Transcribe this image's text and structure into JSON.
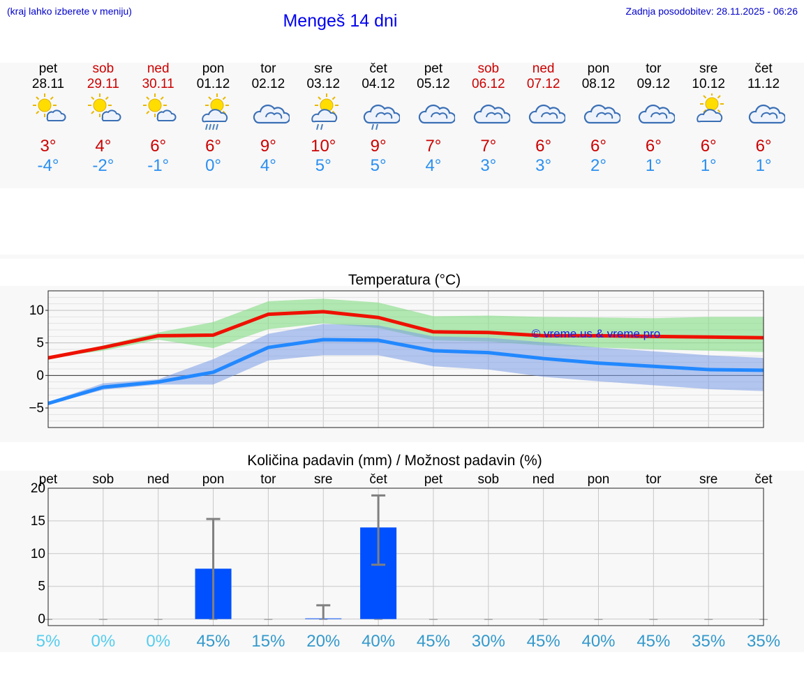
{
  "header": {
    "hint": "(kraj lahko izberete v meniju)",
    "title": "Mengeš 14 dni",
    "updated": "Zadnja posodobitev: 28.11.2025 - 06:26"
  },
  "colors": {
    "tmax": "#cc0000",
    "tmin": "#2a8ff0",
    "weekend": "#cc0000",
    "bar": "#0050ff",
    "prob_low": "#55ccee",
    "prob_high": "#3399cc"
  },
  "days": [
    {
      "name": "pet",
      "date": "28.11",
      "weekend": false,
      "icon": "sun-cloud-icon",
      "tmax": "3°",
      "tmin": "-4°"
    },
    {
      "name": "sob",
      "date": "29.11",
      "weekend": true,
      "icon": "sun-cloud-icon",
      "tmax": "4°",
      "tmin": "-2°"
    },
    {
      "name": "ned",
      "date": "30.11",
      "weekend": true,
      "icon": "sun-cloud-icon",
      "tmax": "6°",
      "tmin": "-1°"
    },
    {
      "name": "pon",
      "date": "01.12",
      "weekend": false,
      "icon": "sun-rain-icon",
      "tmax": "6°",
      "tmin": "0°"
    },
    {
      "name": "tor",
      "date": "02.12",
      "weekend": false,
      "icon": "cloud-icon",
      "tmax": "9°",
      "tmin": "4°"
    },
    {
      "name": "sre",
      "date": "03.12",
      "weekend": false,
      "icon": "sun-drizzle-icon",
      "tmax": "10°",
      "tmin": "5°"
    },
    {
      "name": "čet",
      "date": "04.12",
      "weekend": false,
      "icon": "cloud-drizzle-icon",
      "tmax": "9°",
      "tmin": "5°"
    },
    {
      "name": "pet",
      "date": "05.12",
      "weekend": false,
      "icon": "cloud-icon",
      "tmax": "7°",
      "tmin": "4°"
    },
    {
      "name": "sob",
      "date": "06.12",
      "weekend": true,
      "icon": "cloud-icon",
      "tmax": "7°",
      "tmin": "3°"
    },
    {
      "name": "ned",
      "date": "07.12",
      "weekend": true,
      "icon": "cloud-icon",
      "tmax": "6°",
      "tmin": "3°"
    },
    {
      "name": "pon",
      "date": "08.12",
      "weekend": false,
      "icon": "cloud-icon",
      "tmax": "6°",
      "tmin": "2°"
    },
    {
      "name": "tor",
      "date": "09.12",
      "weekend": false,
      "icon": "cloud-icon",
      "tmax": "6°",
      "tmin": "1°"
    },
    {
      "name": "sre",
      "date": "10.12",
      "weekend": false,
      "icon": "sun-cloud-big-icon",
      "tmax": "6°",
      "tmin": "1°"
    },
    {
      "name": "čet",
      "date": "11.12",
      "weekend": false,
      "icon": "cloud-icon",
      "tmax": "6°",
      "tmin": "1°"
    }
  ],
  "chart_data": [
    {
      "type": "line",
      "title": "Temperatura (°C)",
      "watermark": "© vreme.us & vreme.pro",
      "ylim": [
        -8,
        13
      ],
      "yticks": [
        10,
        5,
        0,
        -5
      ],
      "ytick_labels": [
        "10",
        "5",
        "0",
        "−5"
      ],
      "x": [
        0,
        1,
        2,
        3,
        4,
        5,
        6,
        7,
        8,
        9,
        10,
        11,
        12,
        13
      ],
      "series": [
        {
          "name": "max",
          "color": "#ee1100",
          "values": [
            2.7,
            4.3,
            6.1,
            6.2,
            9.4,
            9.8,
            8.9,
            6.7,
            6.6,
            6.1,
            6.1,
            6.0,
            5.9,
            5.8
          ],
          "band_low": [
            2.7,
            3.8,
            5.5,
            4.2,
            7.1,
            8.0,
            7.3,
            5.4,
            5.2,
            4.6,
            4.3,
            4.0,
            3.8,
            3.6
          ],
          "band_high": [
            2.9,
            4.6,
            6.6,
            8.2,
            11.4,
            11.8,
            11.2,
            9.1,
            9.2,
            9.0,
            8.9,
            8.8,
            9.0,
            9.0
          ]
        },
        {
          "name": "min",
          "color": "#2288ff",
          "values": [
            -4.3,
            -1.8,
            -1.0,
            0.5,
            4.3,
            5.5,
            5.4,
            3.8,
            3.5,
            2.6,
            1.9,
            1.4,
            0.9,
            0.8
          ],
          "band_low": [
            -4.5,
            -2.2,
            -1.4,
            -1.4,
            2.3,
            3.1,
            3.1,
            1.4,
            0.9,
            -0.2,
            -0.9,
            -1.5,
            -2.1,
            -2.4
          ],
          "band_high": [
            -4.1,
            -1.2,
            -0.6,
            2.5,
            6.4,
            7.9,
            7.7,
            6.0,
            5.8,
            5.1,
            4.3,
            3.7,
            3.1,
            2.7
          ]
        }
      ]
    },
    {
      "type": "bar",
      "title": "Količina padavin (mm) / Možnost padavin (%)",
      "categories": [
        "pet",
        "sob",
        "ned",
        "pon",
        "tor",
        "sre",
        "čet",
        "pet",
        "sob",
        "ned",
        "pon",
        "tor",
        "sre",
        "čet"
      ],
      "ylim": [
        -1,
        20
      ],
      "yticks": [
        20,
        15,
        10,
        5,
        0
      ],
      "ytick_labels": [
        "20",
        "15",
        "10",
        "5",
        "0"
      ],
      "values": [
        0,
        0,
        0,
        7.7,
        0,
        0.1,
        14.0,
        0,
        0,
        0,
        0,
        0,
        0,
        0
      ],
      "error_low": [
        0,
        0,
        0,
        0,
        0,
        0,
        8.3,
        0,
        0,
        0,
        0,
        0,
        0,
        0
      ],
      "error_high": [
        0,
        0,
        0,
        15.3,
        0,
        2.1,
        18.9,
        0,
        0,
        0,
        0,
        0,
        0,
        0
      ],
      "probabilities": [
        "5%",
        "0%",
        "0%",
        "45%",
        "15%",
        "20%",
        "40%",
        "45%",
        "30%",
        "45%",
        "40%",
        "45%",
        "35%",
        "35%"
      ]
    }
  ]
}
